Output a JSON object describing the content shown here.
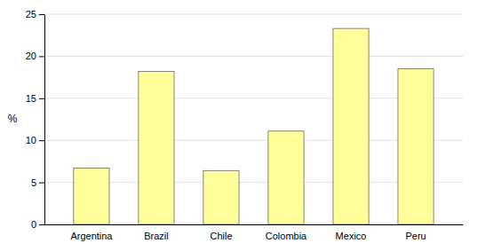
{
  "chart_data": {
    "type": "bar",
    "ylabel": "%",
    "categories": [
      "Argentina",
      "Brazil",
      "Chile",
      "Colombia",
      "Mexico",
      "Peru"
    ],
    "values": [
      6.7,
      18.2,
      6.4,
      11.1,
      23.3,
      18.5
    ],
    "color": "#FFFF99",
    "ylim": [
      0,
      25
    ],
    "yticks": [
      0,
      5,
      10,
      15,
      20,
      25
    ],
    "grid": true
  }
}
